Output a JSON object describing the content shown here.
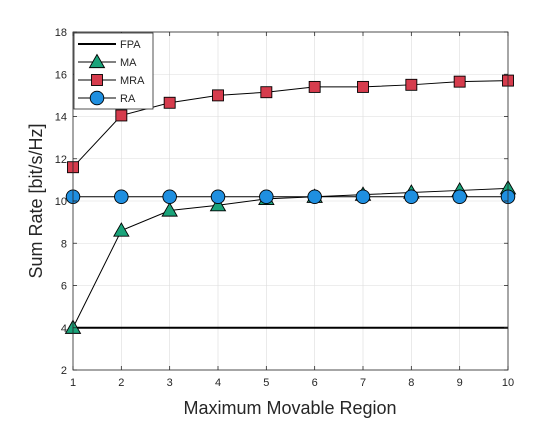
{
  "chart_data": {
    "type": "line",
    "xlabel": "Maximum Movable Region",
    "ylabel": "Sum Rate [bit/s/Hz]",
    "xlim": [
      1,
      10
    ],
    "ylim": [
      2,
      18
    ],
    "x_ticks": [
      1,
      2,
      3,
      4,
      5,
      6,
      7,
      8,
      9,
      10
    ],
    "y_ticks": [
      2,
      4,
      6,
      8,
      10,
      12,
      14,
      16,
      18
    ],
    "grid": true,
    "legend_position": "top-left",
    "x": [
      1,
      2,
      3,
      4,
      5,
      6,
      7,
      8,
      9,
      10
    ],
    "series": [
      {
        "name": "FPA",
        "values": [
          4.0,
          4.0,
          4.0,
          4.0,
          4.0,
          4.0,
          4.0,
          4.0,
          4.0,
          4.0
        ],
        "color": "#000000",
        "marker": "none",
        "line_width": "thick"
      },
      {
        "name": "MA",
        "values": [
          4.0,
          8.6,
          9.55,
          9.8,
          10.1,
          10.2,
          10.3,
          10.4,
          10.5,
          10.6
        ],
        "color": "#000000",
        "marker": "triangle",
        "marker_color": "#1aa37a"
      },
      {
        "name": "MRA",
        "values": [
          11.6,
          14.05,
          14.65,
          15.0,
          15.15,
          15.4,
          15.4,
          15.5,
          15.65,
          15.7
        ],
        "color": "#000000",
        "marker": "square",
        "marker_color": "#d63c4d"
      },
      {
        "name": "RA",
        "values": [
          10.2,
          10.2,
          10.2,
          10.2,
          10.2,
          10.2,
          10.2,
          10.2,
          10.2,
          10.2
        ],
        "color": "#000000",
        "marker": "circle",
        "marker_color": "#1f8fe0"
      }
    ]
  }
}
